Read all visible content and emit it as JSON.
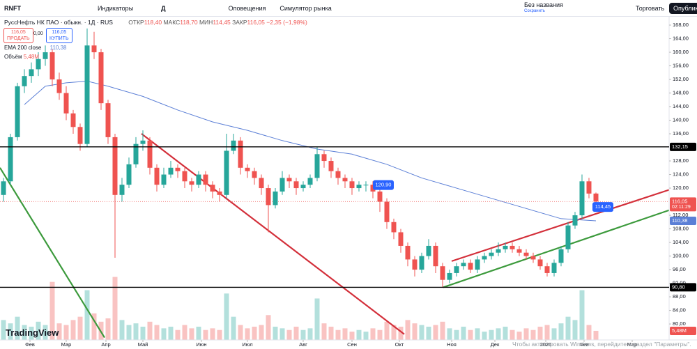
{
  "toolbar": {
    "symbol": "RNFT",
    "indicators": "Индикаторы",
    "interval": "Д",
    "alerts": "Оповещения",
    "replay": "Симулятор рынка",
    "layout_name": "Без названия",
    "layout_status": "Сохранить",
    "trade": "Торговать",
    "publish": "Опубликовать"
  },
  "legend": {
    "title": "РуссНефть НК ПАО · обыкн. · 1Д · RUS",
    "open_label": "ОТКР",
    "open": "118,40",
    "high_label": "МАКС",
    "high": "118,70",
    "low_label": "МИН",
    "low": "114,45",
    "close_label": "ЗАКР",
    "close": "116,05",
    "change": "−2,35 (−1,98%)",
    "sell_price": "116,05",
    "sell": "ПРОДАТЬ",
    "spread": "0,00",
    "buy_price": "116,05",
    "buy": "КУПИТЬ",
    "ema_name": "EMA 200 close",
    "ema_value": "110,38",
    "volume_name": "Объём",
    "volume_value": "5,48M"
  },
  "branding": {
    "logo": "TradingView"
  },
  "overlay": {
    "watermark": "Чтобы активировать Windows, перейдите в раздел \"Параметры\"."
  },
  "chart_data": {
    "type": "candlestick",
    "up_color": "#26a69a",
    "down_color": "#ef5350",
    "candles": [
      [
        118,
        123,
        116,
        122
      ],
      [
        122,
        136,
        121,
        135
      ],
      [
        135,
        151,
        134,
        150
      ],
      [
        150,
        155,
        148,
        153
      ],
      [
        153,
        157,
        151,
        155
      ],
      [
        155,
        160,
        153,
        158
      ],
      [
        158,
        162,
        156,
        160
      ],
      [
        160,
        161,
        150,
        152
      ],
      [
        152,
        154,
        146,
        148
      ],
      [
        148,
        150,
        140,
        142
      ],
      [
        142,
        143,
        136,
        138
      ],
      [
        138,
        139,
        131,
        133
      ],
      [
        133,
        167,
        132,
        162
      ],
      [
        162,
        166,
        158,
        160
      ],
      [
        160,
        161,
        143,
        145
      ],
      [
        145,
        146,
        133,
        135
      ],
      [
        135,
        136,
        99.5,
        118
      ],
      [
        118,
        123,
        116,
        121
      ],
      [
        121,
        129,
        120,
        127
      ],
      [
        127,
        135,
        126,
        133
      ],
      [
        133,
        137,
        131,
        134
      ],
      [
        134,
        135,
        124,
        126
      ],
      [
        126,
        127,
        119,
        121
      ],
      [
        121,
        126,
        120,
        124
      ],
      [
        124,
        128,
        123,
        126
      ],
      [
        126,
        127,
        123,
        125
      ],
      [
        125,
        126,
        120,
        122
      ],
      [
        122,
        123,
        119,
        121
      ],
      [
        121,
        125,
        120,
        124
      ],
      [
        124,
        125,
        119,
        121
      ],
      [
        121,
        122,
        117,
        119
      ],
      [
        119,
        120,
        116,
        118
      ],
      [
        118,
        136,
        117,
        131
      ],
      [
        131,
        136,
        130,
        134
      ],
      [
        134,
        135,
        124,
        126
      ],
      [
        126,
        127,
        123,
        125
      ],
      [
        125,
        126,
        121,
        123
      ],
      [
        123,
        124,
        118,
        120
      ],
      [
        120,
        121,
        107,
        115
      ],
      [
        115,
        120,
        114,
        119
      ],
      [
        119,
        125,
        118,
        123
      ],
      [
        123,
        124,
        120,
        122
      ],
      [
        122,
        123,
        118,
        120
      ],
      [
        120,
        122,
        119,
        121
      ],
      [
        121,
        124,
        120,
        123
      ],
      [
        123,
        132,
        122,
        130
      ],
      [
        130,
        131,
        126,
        128
      ],
      [
        128,
        129,
        123,
        125
      ],
      [
        125,
        126,
        121,
        123
      ],
      [
        123,
        124,
        120,
        122
      ],
      [
        122,
        123,
        118,
        120
      ],
      [
        120,
        122,
        119,
        121
      ],
      [
        121,
        122,
        119,
        121
      ],
      [
        121,
        122,
        117,
        119
      ],
      [
        119,
        120,
        113,
        116
      ],
      [
        116,
        117,
        108,
        110
      ],
      [
        110,
        111,
        105,
        107
      ],
      [
        107,
        108,
        101,
        103
      ],
      [
        103,
        104,
        97,
        99
      ],
      [
        99,
        100,
        94,
        96
      ],
      [
        96,
        101,
        95,
        100
      ],
      [
        100,
        105,
        99,
        103
      ],
      [
        103,
        104,
        95,
        97
      ],
      [
        97,
        98,
        90.8,
        93
      ],
      [
        93,
        96,
        92,
        95
      ],
      [
        95,
        98,
        94,
        97
      ],
      [
        97,
        99,
        96,
        98
      ],
      [
        98,
        99,
        95,
        96
      ],
      [
        96,
        100,
        95,
        99
      ],
      [
        99,
        101,
        98,
        100
      ],
      [
        100,
        102,
        99,
        101
      ],
      [
        101,
        104,
        100,
        102
      ],
      [
        102,
        104,
        101,
        103
      ],
      [
        103,
        104,
        101,
        102
      ],
      [
        102,
        103,
        100,
        101
      ],
      [
        101,
        102,
        99,
        100
      ],
      [
        100,
        101,
        98,
        99
      ],
      [
        99,
        100,
        96,
        97
      ],
      [
        97,
        98,
        94,
        95
      ],
      [
        95,
        99,
        94,
        98
      ],
      [
        98,
        103,
        97,
        102
      ],
      [
        102,
        110,
        101,
        109
      ],
      [
        109,
        113,
        108,
        112
      ],
      [
        112,
        124,
        111,
        122
      ],
      [
        122,
        123,
        117,
        118.4
      ],
      [
        118.4,
        118.7,
        114.45,
        116.05
      ]
    ],
    "volume": [
      12,
      10,
      14,
      9,
      8,
      11,
      9,
      35,
      10,
      9,
      12,
      14,
      30,
      16,
      11,
      13,
      38,
      12,
      9,
      10,
      8,
      11,
      9,
      7,
      8,
      6,
      9,
      7,
      8,
      6,
      7,
      6,
      28,
      14,
      9,
      7,
      8,
      9,
      15,
      8,
      7,
      6,
      8,
      6,
      7,
      25,
      10,
      8,
      6,
      7,
      5,
      6,
      5,
      7,
      6,
      11,
      9,
      8,
      12,
      10,
      9,
      8,
      9,
      11,
      7,
      6,
      8,
      6,
      7,
      5,
      6,
      7,
      8,
      6,
      5,
      7,
      6,
      8,
      9,
      7,
      10,
      14,
      12,
      30,
      9,
      5.48
    ],
    "volume_lim": [
      0,
      42
    ],
    "volume_label": {
      "value": 5.48,
      "label": "5,48M"
    },
    "xlim": [
      -0.5,
      95.5
    ],
    "xticks": [
      {
        "value": 3.8,
        "label": "Фев"
      },
      {
        "value": 9,
        "label": "Мар"
      },
      {
        "value": 14.7,
        "label": "Апр"
      },
      {
        "value": 20,
        "label": "Май"
      },
      {
        "value": 28.4,
        "label": "Июн"
      },
      {
        "value": 35,
        "label": "Июл"
      },
      {
        "value": 43,
        "label": "Авг"
      },
      {
        "value": 50,
        "label": "Сен"
      },
      {
        "value": 56.8,
        "label": "Окт"
      },
      {
        "value": 64.3,
        "label": "Ноя"
      },
      {
        "value": 70.5,
        "label": "Дек"
      },
      {
        "value": 77.8,
        "label": "2026"
      },
      {
        "value": 83.3,
        "label": "Фев"
      },
      {
        "value": 90.2,
        "label": "Мар"
      }
    ],
    "ylim": [
      75.3,
      170.26
    ],
    "yticks": [
      {
        "value": 80,
        "label": "80,00"
      },
      {
        "value": 84,
        "label": "84,00"
      },
      {
        "value": 88,
        "label": "88,00"
      },
      {
        "value": 92,
        "label": "92,00"
      },
      {
        "value": 96,
        "label": "96,00"
      },
      {
        "value": 100,
        "label": "100,00"
      },
      {
        "value": 104,
        "label": "104,00"
      },
      {
        "value": 108,
        "label": "108,00"
      },
      {
        "value": 112,
        "label": "112,00"
      },
      {
        "value": 120,
        "label": "120,00"
      },
      {
        "value": 124,
        "label": "124,00"
      },
      {
        "value": 128,
        "label": "128,00"
      },
      {
        "value": 136,
        "label": "136,00"
      },
      {
        "value": 140,
        "label": "140,00"
      },
      {
        "value": 144,
        "label": "144,00"
      },
      {
        "value": 148,
        "label": "148,00"
      },
      {
        "value": 152,
        "label": "152,00"
      },
      {
        "value": 156,
        "label": "156,00"
      },
      {
        "value": 160,
        "label": "160,00"
      },
      {
        "value": 164,
        "label": "164,00"
      },
      {
        "value": 168,
        "label": "168,00"
      }
    ],
    "ema": {
      "name": "EMA 200 close",
      "color": "#5b7fd6",
      "x": [
        3,
        6,
        9,
        12,
        15,
        20,
        25,
        30,
        35,
        40,
        45,
        50,
        55,
        60,
        65,
        70,
        75,
        80,
        85
      ],
      "values": [
        144.6,
        150,
        151,
        151.5,
        150,
        147,
        143,
        139.5,
        137,
        134,
        131.5,
        130,
        127,
        123,
        120,
        117,
        114,
        111,
        110.38
      ],
      "last_label": {
        "value": 110.38,
        "label": "110,38"
      }
    },
    "hlines": [
      {
        "value": 132.15,
        "label": "132,15",
        "color": "#000000"
      },
      {
        "value": 90.8,
        "label": "90,80",
        "color": "#000000"
      }
    ],
    "last_price": {
      "value": 116.05,
      "label": "116,05",
      "countdown": "02:11:29",
      "color": "#ef5350"
    },
    "trendlines": [
      {
        "color": "#d32f3a",
        "points": [
          [
            19.8,
            136
          ],
          [
            57.5,
            77
          ]
        ]
      },
      {
        "color": "#3c9a3c",
        "points": [
          [
            -0.5,
            126
          ],
          [
            14.5,
            76
          ]
        ]
      },
      {
        "color": "#d32f3a",
        "points": [
          [
            64.3,
            98.5
          ],
          [
            95.5,
            119.5
          ]
        ]
      },
      {
        "color": "#3c9a3c",
        "points": [
          [
            63.1,
            90.8
          ],
          [
            95.5,
            113.5
          ]
        ]
      }
    ],
    "callouts": [
      {
        "x": 54.5,
        "value": 120.9,
        "label": "120,90"
      },
      {
        "x": 86,
        "value": 114.45,
        "label": "114,45"
      }
    ]
  }
}
